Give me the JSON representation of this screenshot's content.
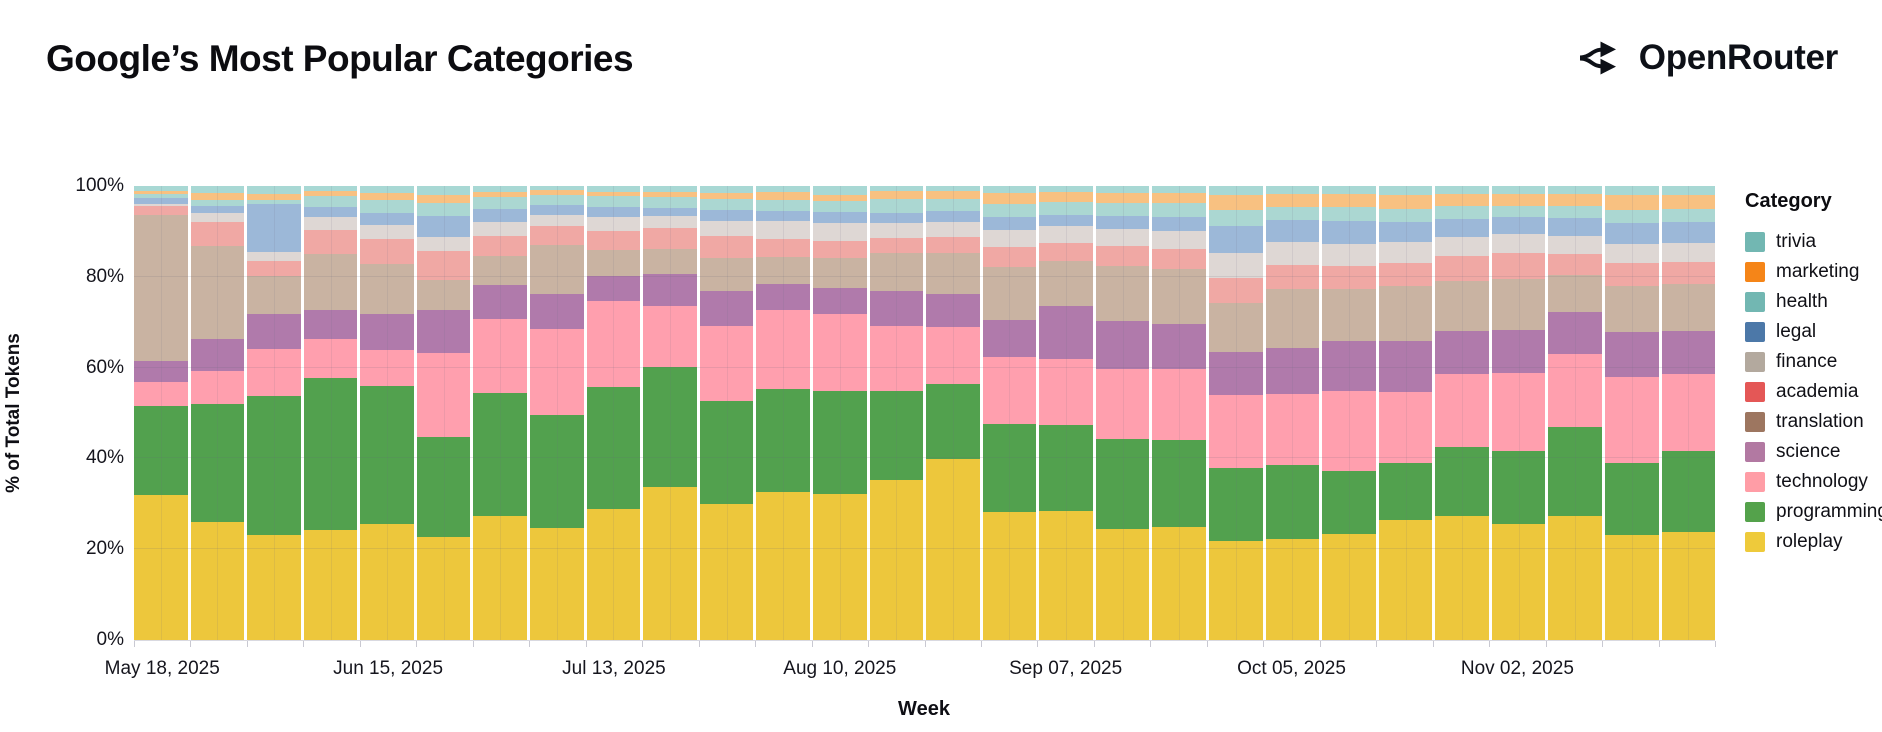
{
  "header": {
    "title": "Google’s Most Popular Categories",
    "brand": "OpenRouter"
  },
  "axes": {
    "y_title": "% of Total Tokens",
    "x_title": "Week",
    "y_ticks": [
      {
        "value": 0,
        "label": "0%"
      },
      {
        "value": 20,
        "label": "20%"
      },
      {
        "value": 40,
        "label": "40%"
      },
      {
        "value": 60,
        "label": "60%"
      },
      {
        "value": 80,
        "label": "80%"
      },
      {
        "value": 100,
        "label": "100%"
      }
    ],
    "x_ticks": [
      {
        "index": 0,
        "label": "May 18, 2025"
      },
      {
        "index": 4,
        "label": "Jun 15, 2025"
      },
      {
        "index": 8,
        "label": "Jul 13, 2025"
      },
      {
        "index": 12,
        "label": "Aug 10, 2025"
      },
      {
        "index": 16,
        "label": "Sep 07, 2025"
      },
      {
        "index": 20,
        "label": "Oct 05, 2025"
      },
      {
        "index": 24,
        "label": "Nov 02, 2025"
      }
    ]
  },
  "legend": {
    "title": "Category",
    "items": [
      {
        "label": "trivia",
        "color": "#72b7b2",
        "dots": true
      },
      {
        "label": "marketing",
        "color": "#f58518",
        "dots": false
      },
      {
        "label": "health",
        "color": "#72b7b2",
        "dots": false
      },
      {
        "label": "legal",
        "color": "#4c78a8",
        "dots": true
      },
      {
        "label": "finance",
        "color": "#b3a99e",
        "dots": true
      },
      {
        "label": "academia",
        "color": "#e45756",
        "dots": false
      },
      {
        "label": "translation",
        "color": "#9d7660",
        "dots": false
      },
      {
        "label": "science",
        "color": "#b279a2",
        "dots": false
      },
      {
        "label": "technology",
        "color": "#ff9da6",
        "dots": false
      },
      {
        "label": "programming",
        "color": "#54a24b",
        "dots": false
      },
      {
        "label": "roleplay",
        "color": "#eeca3b",
        "dots": false
      }
    ]
  },
  "chart_data": {
    "type": "bar",
    "stacked": true,
    "normalized_percent": true,
    "title": "Google’s Most Popular Categories",
    "xlabel": "Week",
    "ylabel": "% of Total Tokens",
    "ylim": [
      0,
      100
    ],
    "grid": "horizontal",
    "legend_position": "right",
    "x": [
      "May 18, 2025",
      "May 25, 2025",
      "Jun 01, 2025",
      "Jun 08, 2025",
      "Jun 15, 2025",
      "Jun 22, 2025",
      "Jun 29, 2025",
      "Jul 06, 2025",
      "Jul 13, 2025",
      "Jul 20, 2025",
      "Jul 27, 2025",
      "Aug 03, 2025",
      "Aug 10, 2025",
      "Aug 17, 2025",
      "Aug 24, 2025",
      "Aug 31, 2025",
      "Sep 07, 2025",
      "Sep 14, 2025",
      "Sep 21, 2025",
      "Sep 28, 2025",
      "Oct 05, 2025",
      "Oct 12, 2025",
      "Oct 19, 2025",
      "Oct 26, 2025",
      "Nov 02, 2025",
      "Nov 09, 2025",
      "Nov 16, 2025",
      "Nov 23, 2025"
    ],
    "series_order": "bottom-to-top",
    "series": [
      {
        "name": "roleplay",
        "bar_color": "#edc73c",
        "dots": false,
        "values": [
          32.0,
          26.0,
          23.1,
          24.2,
          25.6,
          22.7,
          27.3,
          24.7,
          28.9,
          33.6,
          30.0,
          32.6,
          32.2,
          35.2,
          39.9,
          28.2,
          28.4,
          24.5,
          24.9,
          21.8,
          22.3,
          23.4,
          26.5,
          27.3,
          25.5,
          27.3,
          23.1,
          23.7
        ]
      },
      {
        "name": "programming",
        "bar_color": "#52a14e",
        "dots": false,
        "values": [
          19.6,
          25.9,
          30.7,
          33.5,
          30.4,
          22.1,
          27.1,
          24.8,
          26.9,
          26.5,
          22.6,
          22.7,
          22.7,
          19.6,
          16.5,
          19.3,
          18.9,
          19.8,
          19.1,
          16.1,
          16.2,
          13.8,
          12.5,
          15.2,
          16.1,
          19.7,
          15.9,
          17.9
        ]
      },
      {
        "name": "technology",
        "bar_color": "#ff9fae",
        "dots": false,
        "values": [
          5.3,
          7.4,
          10.3,
          8.6,
          7.9,
          18.4,
          16.4,
          19.1,
          18.9,
          13.5,
          16.6,
          17.4,
          16.9,
          14.4,
          12.5,
          14.8,
          14.6,
          15.4,
          15.7,
          16.0,
          15.6,
          17.7,
          15.6,
          16.1,
          17.2,
          16.1,
          19.0,
          16.9
        ]
      },
      {
        "name": "science",
        "bar_color": "#b07aab",
        "dots": false,
        "values": [
          4.6,
          7.1,
          7.7,
          6.4,
          8.0,
          9.5,
          7.4,
          7.6,
          5.5,
          7.1,
          7.6,
          5.7,
          5.7,
          7.7,
          7.3,
          8.2,
          11.7,
          10.6,
          9.9,
          9.6,
          10.2,
          10.9,
          11.3,
          9.4,
          9.5,
          9.1,
          9.8,
          9.6
        ]
      },
      {
        "name": "translation",
        "bar_color": "#c9b3a2",
        "dots": false,
        "values": [
          32.2,
          20.4,
          8.4,
          12.4,
          11.0,
          6.5,
          6.4,
          10.9,
          5.6,
          5.5,
          7.3,
          5.9,
          6.6,
          8.4,
          9.1,
          11.6,
          9.9,
          12.1,
          12.1,
          10.7,
          13.0,
          11.5,
          12.1,
          11.0,
          11.2,
          8.3,
          10.2,
          10.4
        ]
      },
      {
        "name": "academia",
        "bar_color": "#f0a8a4",
        "dots": false,
        "values": [
          1.8,
          5.3,
          3.4,
          5.2,
          5.5,
          6.5,
          4.5,
          4.0,
          4.2,
          4.5,
          4.8,
          4.0,
          3.9,
          3.3,
          3.5,
          4.5,
          4.0,
          4.3,
          4.5,
          5.5,
          5.4,
          5.2,
          5.0,
          5.5,
          5.8,
          4.6,
          5.0,
          4.8
        ]
      },
      {
        "name": "finance",
        "bar_color": "#ded7d4",
        "dots": true,
        "dot_class": "dots-finance",
        "values": [
          0.5,
          2.0,
          1.8,
          2.8,
          3.0,
          3.0,
          3.0,
          2.6,
          3.1,
          2.6,
          3.5,
          4.0,
          3.8,
          3.3,
          3.2,
          3.8,
          3.6,
          3.8,
          4.0,
          5.5,
          4.9,
          4.8,
          4.6,
          4.3,
          4.1,
          4.0,
          4.3,
          4.2
        ]
      },
      {
        "name": "legal",
        "bar_color": "#9cb8d8",
        "dots": true,
        "dot_class": "dots-legal",
        "values": [
          1.3,
          1.5,
          10.6,
          2.2,
          2.7,
          4.8,
          2.8,
          2.1,
          2.2,
          1.8,
          2.4,
          2.3,
          2.4,
          2.2,
          2.4,
          2.8,
          2.6,
          2.9,
          3.1,
          6.0,
          4.9,
          4.9,
          4.4,
          4.0,
          3.8,
          3.9,
          4.5,
          4.6
        ]
      },
      {
        "name": "health",
        "bar_color": "#abd7d2",
        "dots": false,
        "values": [
          1.0,
          1.4,
          1.0,
          2.5,
          2.8,
          2.7,
          2.6,
          2.3,
          2.4,
          2.4,
          2.4,
          2.4,
          2.5,
          3.0,
          2.8,
          2.9,
          2.7,
          2.8,
          2.9,
          3.5,
          3.0,
          3.1,
          3.0,
          2.7,
          2.5,
          2.6,
          2.9,
          2.8
        ]
      },
      {
        "name": "marketing",
        "bar_color": "#f8c181",
        "dots": false,
        "values": [
          0.7,
          1.4,
          1.2,
          1.2,
          1.6,
          1.8,
          1.3,
          1.0,
          1.1,
          1.1,
          1.2,
          1.6,
          1.4,
          1.9,
          1.8,
          2.4,
          2.2,
          2.3,
          2.3,
          3.4,
          2.8,
          2.9,
          3.0,
          2.7,
          2.6,
          2.7,
          3.3,
          3.1
        ]
      },
      {
        "name": "trivia",
        "bar_color": "#a8d8d4",
        "dots": true,
        "dot_class": "dots-trivia",
        "values": [
          1.0,
          1.6,
          1.8,
          1.0,
          1.5,
          2.0,
          1.2,
          0.9,
          1.2,
          1.4,
          1.6,
          1.4,
          1.9,
          1.0,
          1.0,
          1.5,
          1.4,
          1.5,
          1.5,
          1.9,
          1.7,
          1.8,
          2.0,
          1.8,
          1.7,
          1.7,
          2.0,
          2.0
        ]
      }
    ]
  }
}
